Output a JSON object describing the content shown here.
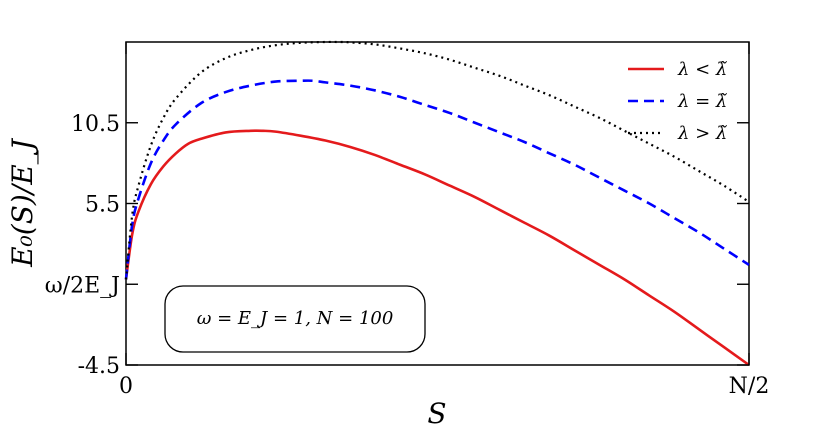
{
  "chart_data": {
    "type": "line",
    "xlabel": "S",
    "ylabel": "E₀(S)/E_J",
    "x_ticks": [
      {
        "value": 0,
        "label": "0"
      },
      {
        "value": 50,
        "label": "N/2"
      }
    ],
    "y_ticks": [
      {
        "value": 10.5,
        "label": "10.5"
      },
      {
        "value": 5.5,
        "label": "5.5"
      },
      {
        "value": 0.5,
        "label": "ω/2E_J"
      },
      {
        "value": -4.5,
        "label": "-4.5"
      }
    ],
    "xlim": [
      0,
      50
    ],
    "ylim": [
      -4.5,
      15.5
    ],
    "legend_position": "top-right",
    "annotation": "ω = E_J = 1, N = 100",
    "series": [
      {
        "name": "λ < λ̃",
        "color": "#e41a1c",
        "style": "solid",
        "x": [
          0,
          0.5,
          1,
          2,
          3,
          4,
          5,
          6,
          8,
          10,
          11,
          12,
          14,
          16,
          18,
          20,
          22,
          24,
          26,
          28,
          30,
          32,
          34,
          36,
          38,
          40,
          42,
          44,
          46,
          48,
          50
        ],
        "y": [
          0.8,
          3.6,
          5.0,
          6.7,
          7.8,
          8.6,
          9.2,
          9.5,
          9.9,
          10.0,
          10.0,
          9.95,
          9.7,
          9.4,
          9.0,
          8.5,
          7.9,
          7.3,
          6.6,
          5.9,
          5.1,
          4.3,
          3.5,
          2.6,
          1.7,
          0.8,
          -0.2,
          -1.2,
          -2.3,
          -3.4,
          -4.5
        ]
      },
      {
        "name": "λ = λ̃",
        "color": "#0000ff",
        "style": "dashed",
        "x": [
          0,
          0.5,
          1,
          2,
          3,
          4,
          6,
          8,
          10,
          12,
          14,
          15,
          16,
          18,
          20,
          22,
          24,
          26,
          28,
          30,
          32,
          34,
          36,
          38,
          40,
          42,
          44,
          46,
          48,
          50
        ],
        "y": [
          0.8,
          4.2,
          5.8,
          8.0,
          9.4,
          10.4,
          11.7,
          12.4,
          12.8,
          13.05,
          13.1,
          13.1,
          13.0,
          12.8,
          12.5,
          12.1,
          11.6,
          11.1,
          10.5,
          9.9,
          9.3,
          8.6,
          7.9,
          7.1,
          6.3,
          5.5,
          4.6,
          3.7,
          2.7,
          1.7
        ]
      },
      {
        "name": "λ > λ̃",
        "color": "#000000",
        "style": "dotted",
        "x": [
          0,
          0.5,
          1,
          2,
          3,
          4,
          6,
          8,
          10,
          12,
          14,
          16,
          17,
          18,
          20,
          22,
          24,
          26,
          28,
          30,
          32,
          34,
          36,
          38,
          40,
          42,
          44,
          46,
          48,
          50
        ],
        "y": [
          0.8,
          4.8,
          6.6,
          9.1,
          10.8,
          12.0,
          13.6,
          14.5,
          15.0,
          15.3,
          15.45,
          15.5,
          15.5,
          15.48,
          15.35,
          15.1,
          14.8,
          14.4,
          13.9,
          13.4,
          12.8,
          12.2,
          11.5,
          10.8,
          10.0,
          9.2,
          8.4,
          7.5,
          6.6,
          5.6
        ]
      }
    ]
  }
}
